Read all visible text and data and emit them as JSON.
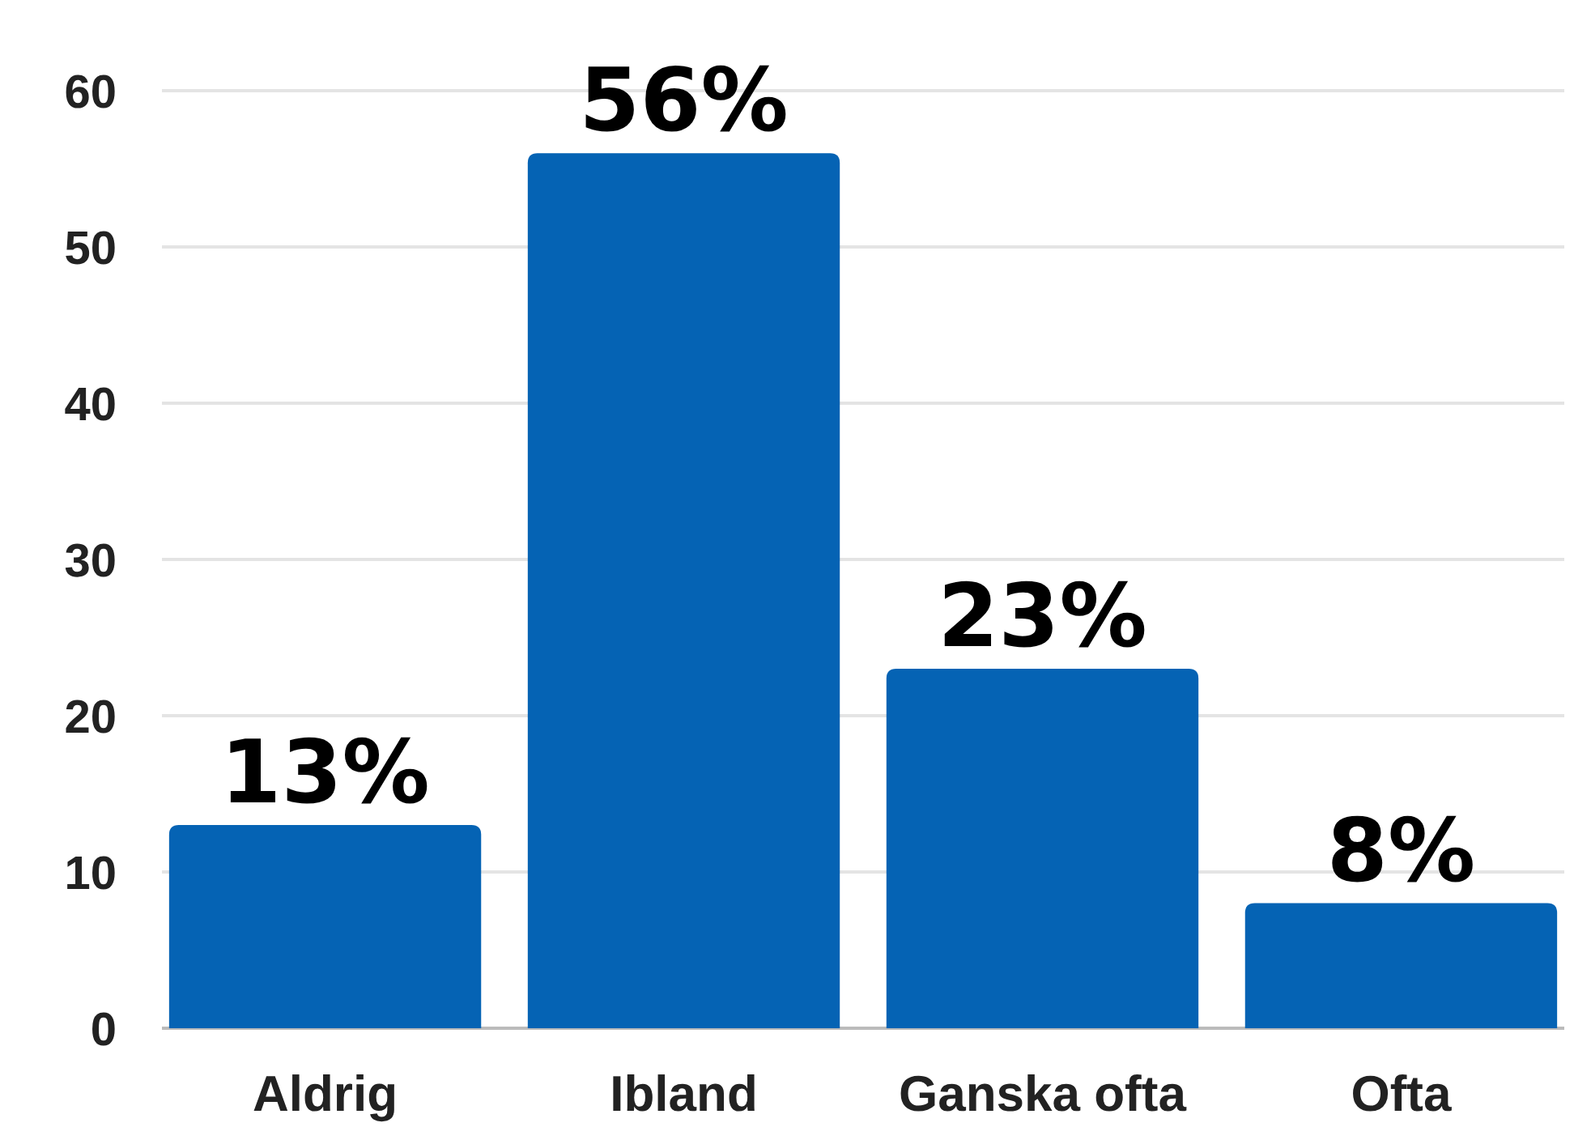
{
  "chart_data": {
    "type": "bar",
    "categories": [
      "Aldrig",
      "Ibland",
      "Ganska ofta",
      "Ofta"
    ],
    "values": [
      13,
      56,
      23,
      8
    ],
    "value_labels": [
      "13%",
      "56%",
      "23%",
      "8%"
    ],
    "color": "#0563b4",
    "ylim": [
      0,
      60
    ],
    "yticks": [
      0,
      10,
      20,
      30,
      40,
      50,
      60
    ],
    "grid": "y"
  }
}
